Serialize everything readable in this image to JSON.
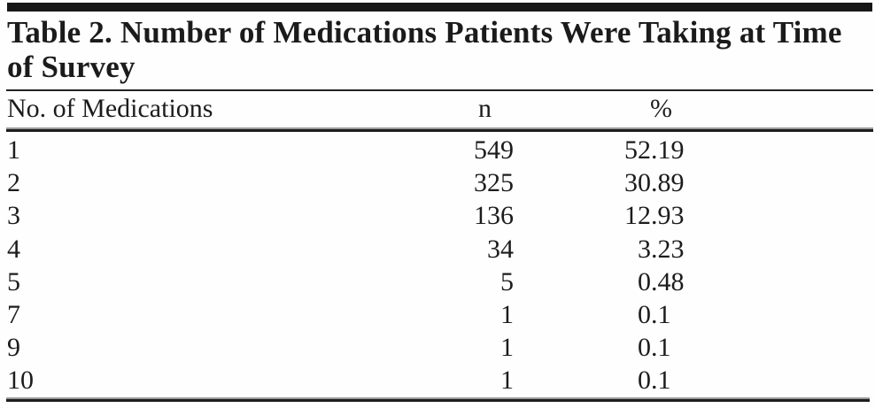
{
  "table": {
    "title_lines": [
      "Table 2. Number of Medications Patients Were Taking at Time",
      "of Survey"
    ],
    "title_full": "Table 2. Number of Medications Patients Were Taking at Time of Survey",
    "columns": {
      "medications": "No. of Medications",
      "n": "n",
      "pct": "%"
    },
    "rows": [
      {
        "label": "1",
        "n": "549",
        "pct": "52.19",
        "pct_int": "52",
        "pct_frac": ".19"
      },
      {
        "label": "2",
        "n": "325",
        "pct": "30.89",
        "pct_int": "30",
        "pct_frac": ".89"
      },
      {
        "label": "3",
        "n": "136",
        "pct": "12.93",
        "pct_int": "12",
        "pct_frac": ".93"
      },
      {
        "label": "4",
        "n": "34",
        "pct": "3.23",
        "pct_int": "3",
        "pct_frac": ".23"
      },
      {
        "label": "5",
        "n": "5",
        "pct": "0.48",
        "pct_int": "0",
        "pct_frac": ".48"
      },
      {
        "label": "7",
        "n": "1",
        "pct": "0.1",
        "pct_int": "0",
        "pct_frac": ".1"
      },
      {
        "label": "9",
        "n": "1",
        "pct": "0.1",
        "pct_int": "0",
        "pct_frac": ".1"
      },
      {
        "label": "10",
        "n": "1",
        "pct": "0.1",
        "pct_int": "0",
        "pct_frac": ".1"
      }
    ]
  },
  "colors": {
    "text": "#1c1c1c",
    "rule": "#1d1d1d",
    "background": "#fefefe"
  }
}
